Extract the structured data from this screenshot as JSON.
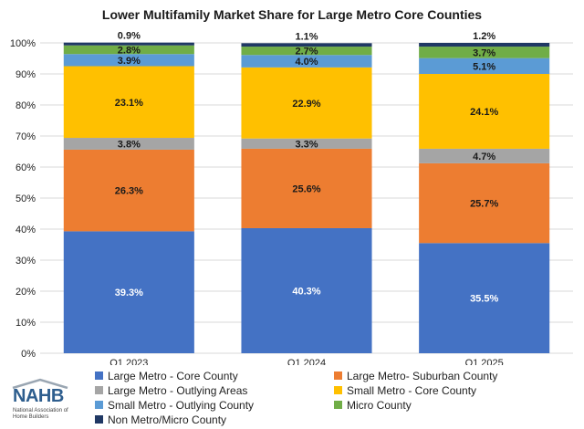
{
  "chart_data": {
    "type": "stacked-bar",
    "title": "Lower Multifamily Market Share for Large Metro Core Counties",
    "categories": [
      "Q1 2023",
      "Q1 2024",
      "Q1 2025"
    ],
    "ylim": [
      0,
      100
    ],
    "yticks": [
      "0%",
      "10%",
      "20%",
      "30%",
      "40%",
      "50%",
      "60%",
      "70%",
      "80%",
      "90%",
      "100%"
    ],
    "grid": true,
    "legend_position": "bottom",
    "series": [
      {
        "name": "Large Metro - Core County",
        "color": "#4472C4",
        "label_color": "#ffffff",
        "values": [
          39.3,
          40.3,
          35.5
        ],
        "labels": [
          "39.3%",
          "40.3%",
          "35.5%"
        ]
      },
      {
        "name": "Large Metro- Suburban County",
        "color": "#ED7D31",
        "label_color": "#1a1a1a",
        "values": [
          26.3,
          25.6,
          25.7
        ],
        "labels": [
          "26.3%",
          "25.6%",
          "25.7%"
        ]
      },
      {
        "name": "Large Metro - Outlying Areas",
        "color": "#A5A5A5",
        "label_color": "#1a1a1a",
        "values": [
          3.8,
          3.3,
          4.7
        ],
        "labels": [
          "3.8%",
          "3.3%",
          "4.7%"
        ]
      },
      {
        "name": "Small Metro - Core County",
        "color": "#FFC000",
        "label_color": "#1a1a1a",
        "values": [
          23.1,
          22.9,
          24.1
        ],
        "labels": [
          "23.1%",
          "22.9%",
          "24.1%"
        ]
      },
      {
        "name": "Small Metro - Outlying County",
        "color": "#5B9BD5",
        "label_color": "#1a1a1a",
        "values": [
          3.9,
          4.0,
          5.1
        ],
        "labels": [
          "3.9%",
          "4.0%",
          "5.1%"
        ]
      },
      {
        "name": "Micro County",
        "color": "#70AD47",
        "label_color": "#1a1a1a",
        "values": [
          2.8,
          2.7,
          3.7
        ],
        "labels": [
          "2.8%",
          "2.7%",
          "3.7%"
        ]
      },
      {
        "name": "Non Metro/Micro County",
        "color": "#203864",
        "label_color": "#1a1a1a",
        "values": [
          0.9,
          1.1,
          1.2
        ],
        "labels": [
          "0.9%",
          "1.1%",
          "1.2%"
        ]
      }
    ]
  },
  "logo": {
    "wordmark": "NAHB",
    "subtitle": "National Association of Home Builders"
  }
}
